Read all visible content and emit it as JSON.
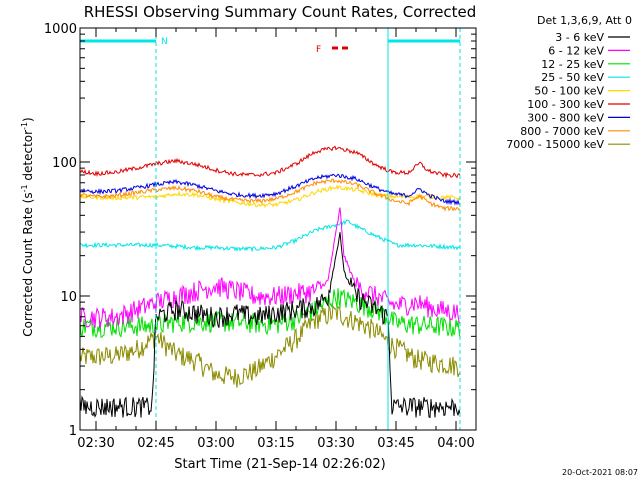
{
  "chart_data": {
    "type": "line",
    "title": "RHESSI Observing Summary Count Rates, Corrected",
    "xlabel": "Start Time (21-Sep-14 02:26:02)",
    "ylabel_main": "Corrected Count Rate (s",
    "ylabel_sup1": "-1",
    "ylabel_mid": " detector",
    "ylabel_sup2": "-1",
    "ylabel_end": ")",
    "yscale": "log",
    "xlim": [
      "02:26",
      "04:05"
    ],
    "ylim": [
      1,
      1000
    ],
    "x_ticks": [
      "02:30",
      "02:45",
      "03:00",
      "03:15",
      "03:30",
      "03:45",
      "04:00"
    ],
    "y_ticks": [
      "1",
      "10",
      "100",
      "1000"
    ],
    "legend_title": "Det 1,3,6,9, Att 0",
    "legend_position": "right, outside plot",
    "footer_date": "20-Oct-2021 08:07",
    "annotations": {
      "night_marker": "N",
      "flare_marker": "F"
    },
    "marker_color": "#00e5e5",
    "flare_color": "#e00000",
    "night_intervals": [
      [
        "02:26",
        "02:45"
      ],
      [
        "03:43",
        "04:01"
      ]
    ],
    "flare_interval": [
      "03:29",
      "03:33"
    ],
    "series": [
      {
        "name": "3 - 6 keV",
        "color": "#000000",
        "x": [
          "02:26",
          "02:44",
          "02:45",
          "02:50",
          "02:55",
          "03:00",
          "03:05",
          "03:10",
          "03:15",
          "03:20",
          "03:25",
          "03:28",
          "03:30",
          "03:31",
          "03:32",
          "03:35",
          "03:40",
          "03:43",
          "03:44",
          "04:01"
        ],
        "y": [
          1.5,
          1.5,
          7,
          8,
          7.5,
          7,
          7.5,
          7,
          7.5,
          8,
          8.5,
          10,
          20,
          30,
          15,
          10,
          8,
          7,
          1.5,
          1.5
        ]
      },
      {
        "name": "6 - 12 keV",
        "color": "#ff00ff",
        "x": [
          "02:26",
          "02:35",
          "02:45",
          "02:50",
          "02:55",
          "03:00",
          "03:05",
          "03:10",
          "03:15",
          "03:20",
          "03:25",
          "03:28",
          "03:30",
          "03:31",
          "03:32",
          "03:35",
          "03:40",
          "03:45",
          "03:50",
          "03:55",
          "04:01"
        ],
        "y": [
          7,
          7,
          9,
          10,
          11,
          12,
          11,
          10,
          10,
          10.5,
          11,
          13,
          30,
          45,
          20,
          12,
          10,
          8.5,
          9,
          8,
          7.5
        ]
      },
      {
        "name": "12 - 25 keV",
        "color": "#00e000",
        "x": [
          "02:26",
          "02:45",
          "02:50",
          "03:00",
          "03:10",
          "03:15",
          "03:20",
          "03:25",
          "03:30",
          "03:35",
          "03:40",
          "03:45",
          "03:55",
          "04:01"
        ],
        "y": [
          6,
          6,
          6.5,
          6.5,
          6.3,
          6.2,
          6.8,
          8,
          10,
          9,
          8,
          6.3,
          6,
          5.8
        ]
      },
      {
        "name": "25 - 50 keV",
        "color": "#00e5e5",
        "x": [
          "02:26",
          "02:35",
          "02:45",
          "02:50",
          "02:55",
          "03:00",
          "03:05",
          "03:10",
          "03:15",
          "03:20",
          "03:25",
          "03:30",
          "03:33",
          "03:36",
          "03:40",
          "03:45",
          "03:50",
          "04:01"
        ],
        "y": [
          24,
          24,
          24,
          23.5,
          23,
          23,
          22.5,
          22.5,
          23,
          26,
          31,
          34,
          36,
          32,
          28,
          24,
          24,
          23
        ]
      },
      {
        "name": "50 - 100 keV",
        "color": "#ffd700",
        "x": [
          "02:26",
          "02:35",
          "02:45",
          "02:50",
          "02:55",
          "03:00",
          "03:05",
          "03:10",
          "03:15",
          "03:20",
          "03:25",
          "03:30",
          "03:35",
          "03:40",
          "03:45",
          "03:50",
          "03:55",
          "04:01"
        ],
        "y": [
          55,
          54,
          55,
          58,
          57,
          53,
          50,
          48,
          48,
          52,
          60,
          65,
          62,
          57,
          55,
          55,
          55,
          54
        ]
      },
      {
        "name": "100 - 300 keV",
        "color": "#e00000",
        "x": [
          "02:26",
          "02:30",
          "02:35",
          "02:40",
          "02:45",
          "02:50",
          "02:55",
          "03:00",
          "03:05",
          "03:10",
          "03:15",
          "03:20",
          "03:25",
          "03:30",
          "03:35",
          "03:40",
          "03:44",
          "03:48",
          "03:51",
          "03:53",
          "03:57",
          "04:01"
        ],
        "y": [
          85,
          82,
          84,
          90,
          97,
          102,
          96,
          87,
          81,
          80,
          83,
          97,
          120,
          128,
          118,
          95,
          84,
          83,
          98,
          86,
          80,
          79
        ]
      },
      {
        "name": "300 - 800 keV",
        "color": "#0000e0",
        "x": [
          "02:26",
          "02:30",
          "02:35",
          "02:40",
          "02:45",
          "02:50",
          "02:55",
          "03:00",
          "03:05",
          "03:10",
          "03:15",
          "03:20",
          "03:25",
          "03:30",
          "03:35",
          "03:40",
          "03:44",
          "03:48",
          "03:51",
          "03:53",
          "03:57",
          "04:01"
        ],
        "y": [
          62,
          60,
          61,
          64,
          68,
          71,
          67,
          61,
          57,
          56,
          58,
          66,
          76,
          80,
          75,
          64,
          58,
          56,
          63,
          57,
          51,
          50
        ]
      },
      {
        "name": "800 - 7000 keV",
        "color": "#ff8c00",
        "x": [
          "02:26",
          "02:30",
          "02:35",
          "02:40",
          "02:45",
          "02:50",
          "02:55",
          "03:00",
          "03:05",
          "03:10",
          "03:15",
          "03:20",
          "03:25",
          "03:30",
          "03:35",
          "03:40",
          "03:44",
          "03:48",
          "03:51",
          "03:53",
          "03:57",
          "04:01"
        ],
        "y": [
          57,
          55,
          56,
          59,
          62,
          64,
          61,
          55,
          52,
          51,
          53,
          60,
          70,
          73,
          68,
          58,
          52,
          49,
          56,
          50,
          45,
          45
        ]
      },
      {
        "name": "7000 - 15000 keV",
        "color": "#8b8b00",
        "x": [
          "02:26",
          "02:35",
          "02:40",
          "02:45",
          "02:50",
          "02:55",
          "03:00",
          "03:05",
          "03:10",
          "03:15",
          "03:20",
          "03:25",
          "03:30",
          "03:35",
          "03:40",
          "03:43",
          "03:50",
          "04:01"
        ],
        "y": [
          3.5,
          3.6,
          4,
          5,
          3.7,
          3.3,
          2.6,
          2.5,
          2.8,
          3.6,
          4.8,
          6.8,
          7.5,
          6.5,
          5.5,
          4.5,
          3.4,
          3
        ]
      }
    ]
  }
}
